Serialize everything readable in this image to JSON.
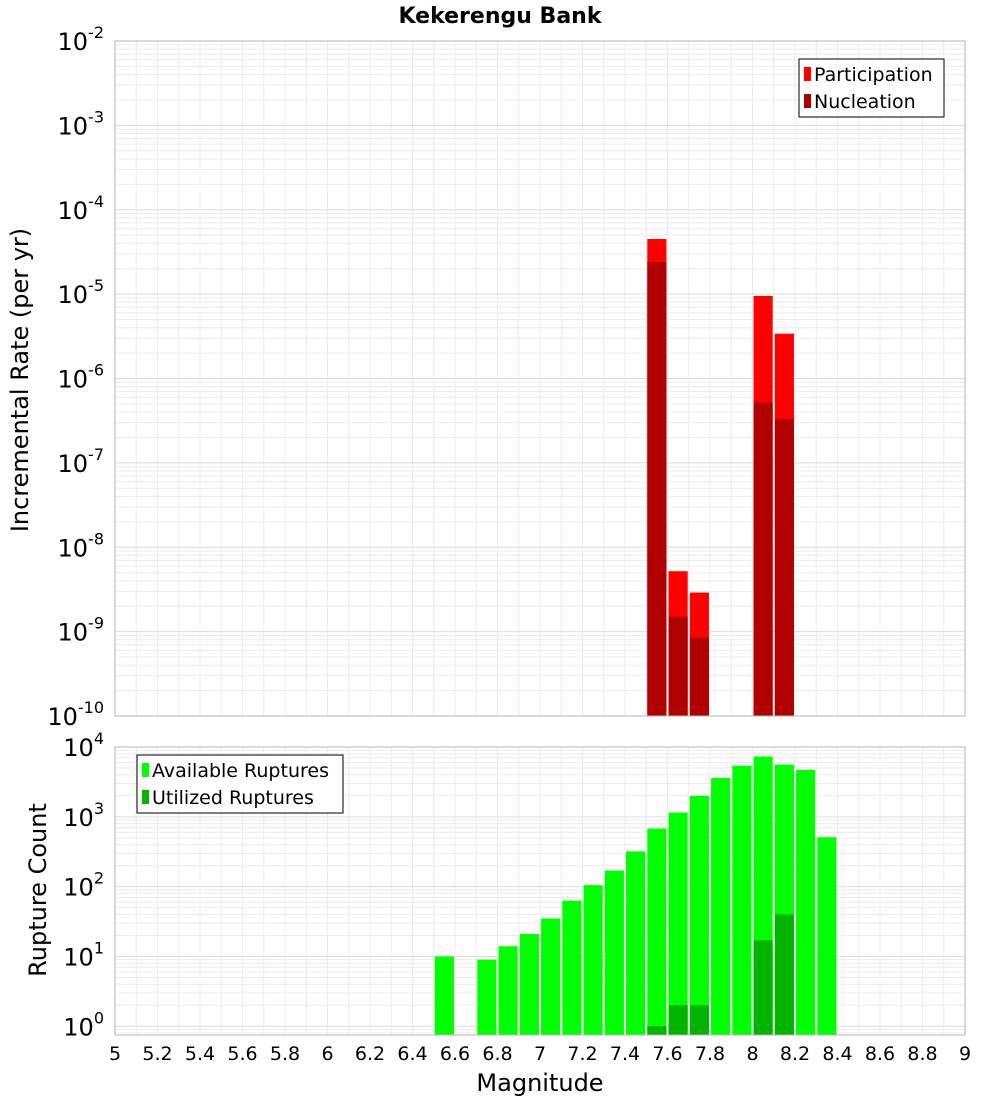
{
  "chart_data": [
    {
      "type": "bar",
      "title": "Kekerengu Bank",
      "ylabel": "Incremental Rate (per yr)",
      "xlabel": "",
      "xlim": [
        5,
        9
      ],
      "ylim": [
        1e-10,
        0.01
      ],
      "y_scale": "log",
      "y_ticks": [
        {
          "base": "10",
          "exp": "-10",
          "value": 1e-10
        },
        {
          "base": "10",
          "exp": "-9",
          "value": 1e-09
        },
        {
          "base": "10",
          "exp": "-8",
          "value": 1e-08
        },
        {
          "base": "10",
          "exp": "-7",
          "value": 1e-07
        },
        {
          "base": "10",
          "exp": "-6",
          "value": 1e-06
        },
        {
          "base": "10",
          "exp": "-5",
          "value": 1e-05
        },
        {
          "base": "10",
          "exp": "-4",
          "value": 0.0001
        },
        {
          "base": "10",
          "exp": "-3",
          "value": 0.001
        },
        {
          "base": "10",
          "exp": "-2",
          "value": 0.01
        }
      ],
      "grid": true,
      "legend_position": "top-right",
      "bar_width": 0.09,
      "series": [
        {
          "name": "Participation",
          "color": "#ff0000",
          "points": [
            {
              "x": 7.55,
              "y": 4.5e-05
            },
            {
              "x": 7.65,
              "y": 5.2e-09
            },
            {
              "x": 7.75,
              "y": 2.9e-09
            },
            {
              "x": 8.05,
              "y": 9.5e-06
            },
            {
              "x": 8.15,
              "y": 3.4e-06
            }
          ]
        },
        {
          "name": "Nucleation",
          "color": "#b00000",
          "points": [
            {
              "x": 7.55,
              "y": 2.4e-05
            },
            {
              "x": 7.65,
              "y": 1.5e-09
            },
            {
              "x": 7.75,
              "y": 8.5e-10
            },
            {
              "x": 8.05,
              "y": 5.2e-07
            },
            {
              "x": 8.15,
              "y": 3.3e-07
            }
          ]
        }
      ]
    },
    {
      "type": "bar",
      "title": "",
      "ylabel": "Rupture Count",
      "xlabel": "Magnitude",
      "xlim": [
        5,
        9
      ],
      "ylim": [
        0.75,
        10000
      ],
      "y_scale": "log",
      "y_ticks": [
        {
          "base": "10",
          "exp": "0",
          "value": 1
        },
        {
          "base": "10",
          "exp": "1",
          "value": 10
        },
        {
          "base": "10",
          "exp": "2",
          "value": 100
        },
        {
          "base": "10",
          "exp": "3",
          "value": 1000
        },
        {
          "base": "10",
          "exp": "4",
          "value": 10000
        }
      ],
      "x_ticks": [
        "5",
        "5.2",
        "5.4",
        "5.6",
        "5.8",
        "6",
        "6.2",
        "6.4",
        "6.6",
        "6.8",
        "7",
        "7.2",
        "7.4",
        "7.6",
        "7.8",
        "8",
        "8.2",
        "8.4",
        "8.6",
        "8.8",
        "9"
      ],
      "grid": true,
      "legend_position": "top-left",
      "bar_width": 0.09,
      "series": [
        {
          "name": "Available Ruptures",
          "color": "#00ff00",
          "points": [
            {
              "x": 6.55,
              "y": 10
            },
            {
              "x": 6.75,
              "y": 9
            },
            {
              "x": 6.85,
              "y": 14
            },
            {
              "x": 6.95,
              "y": 21
            },
            {
              "x": 7.05,
              "y": 35
            },
            {
              "x": 7.15,
              "y": 63
            },
            {
              "x": 7.25,
              "y": 105
            },
            {
              "x": 7.35,
              "y": 170
            },
            {
              "x": 7.45,
              "y": 320
            },
            {
              "x": 7.55,
              "y": 680
            },
            {
              "x": 7.65,
              "y": 1150
            },
            {
              "x": 7.75,
              "y": 2000
            },
            {
              "x": 7.85,
              "y": 3600
            },
            {
              "x": 7.95,
              "y": 5400
            },
            {
              "x": 8.05,
              "y": 7300
            },
            {
              "x": 8.15,
              "y": 5600
            },
            {
              "x": 8.25,
              "y": 4700
            },
            {
              "x": 8.35,
              "y": 510
            }
          ]
        },
        {
          "name": "Utilized Ruptures",
          "color": "#00b400",
          "points": [
            {
              "x": 7.55,
              "y": 1
            },
            {
              "x": 7.65,
              "y": 2
            },
            {
              "x": 7.75,
              "y": 2
            },
            {
              "x": 8.05,
              "y": 17
            },
            {
              "x": 8.15,
              "y": 40
            }
          ]
        }
      ]
    }
  ]
}
